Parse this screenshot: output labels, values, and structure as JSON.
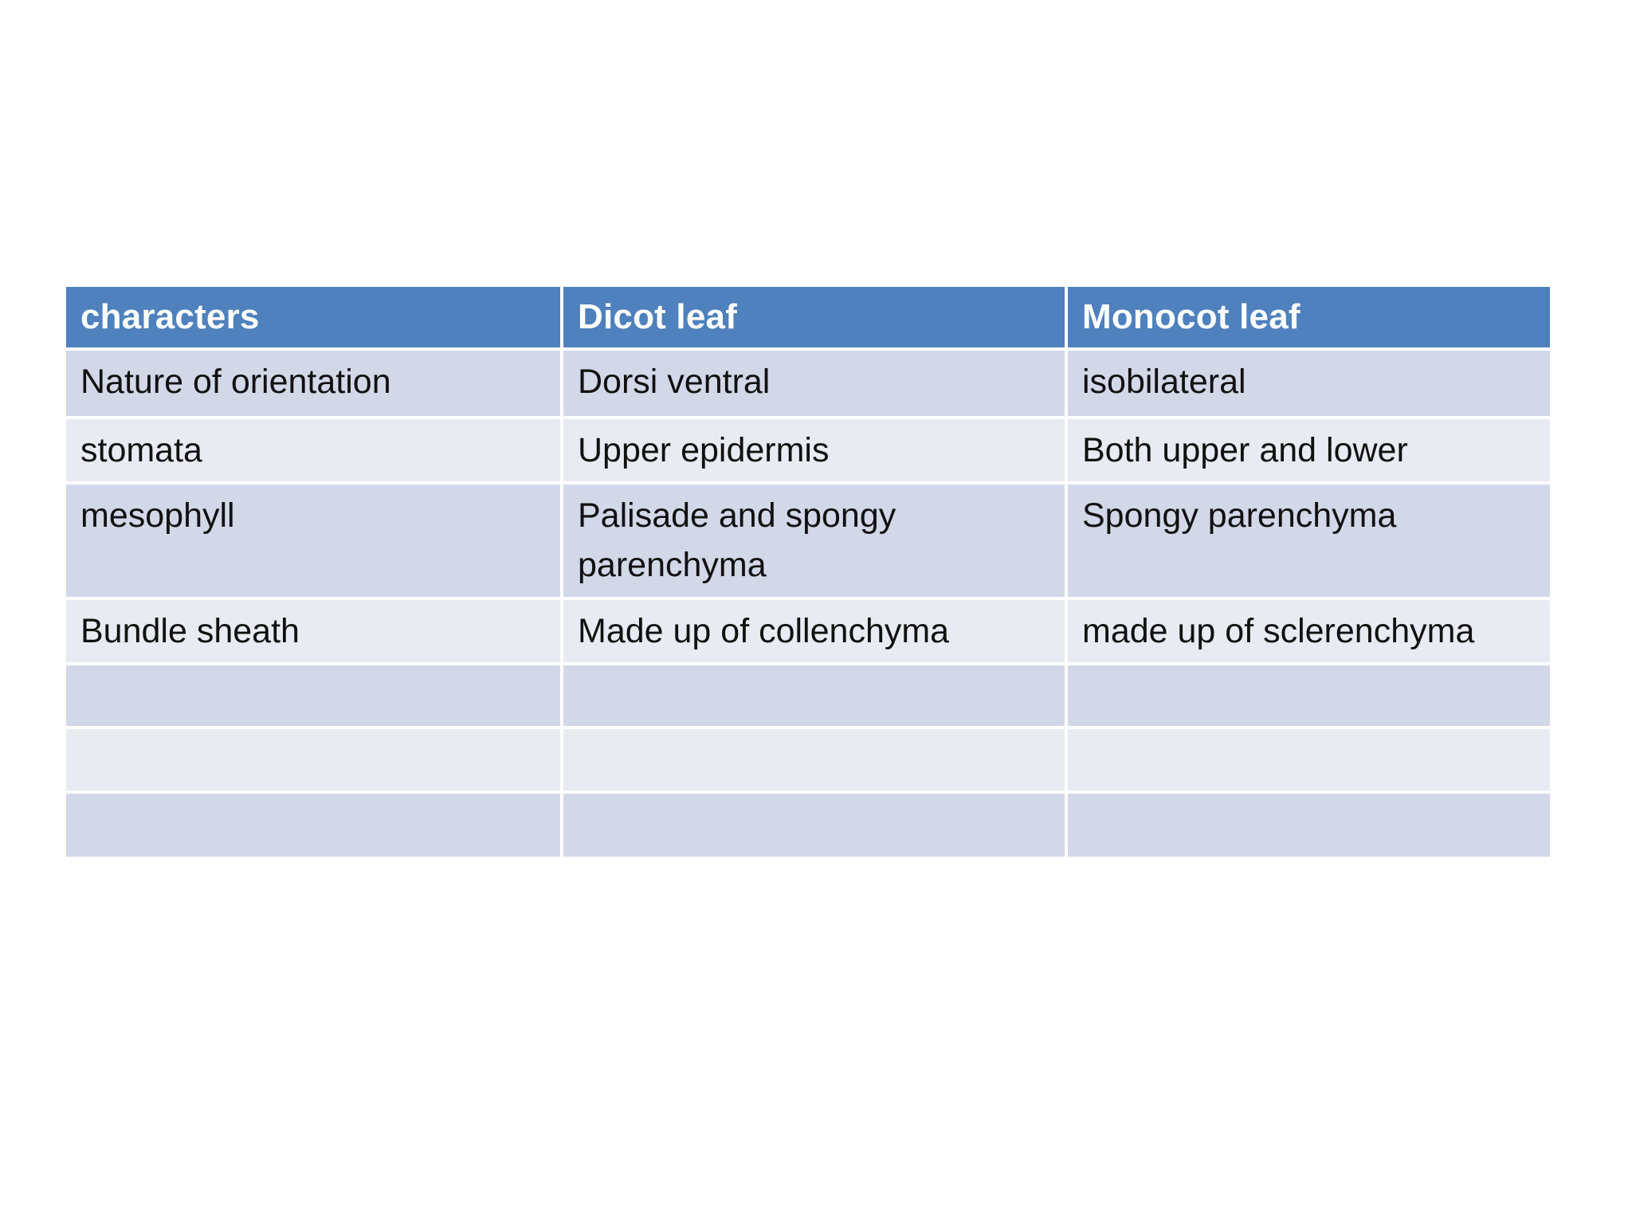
{
  "slide": {
    "background": "#ffffff"
  },
  "table": {
    "colors": {
      "slide_bg": "#ffffff",
      "header_bg": "#4e81bd",
      "header_text": "#ffffff",
      "row_dark": "#d2d8e8",
      "row_light": "#e9ebf2",
      "body_text": "#111111"
    },
    "header": [
      "characters",
      "Dicot leaf",
      "Monocot leaf"
    ],
    "rows": [
      [
        "Nature of orientation",
        "Dorsi ventral",
        "isobilateral"
      ],
      [
        "stomata",
        "Upper epidermis",
        "Both upper and lower"
      ],
      [
        "mesophyll",
        "Palisade and spongy\nparenchyma",
        "Spongy parenchyma"
      ],
      [
        "Bundle sheath",
        "Made up of collenchyma",
        "made up of sclerenchyma"
      ],
      [
        "",
        "",
        ""
      ],
      [
        "",
        "",
        ""
      ],
      [
        "",
        "",
        ""
      ]
    ]
  }
}
